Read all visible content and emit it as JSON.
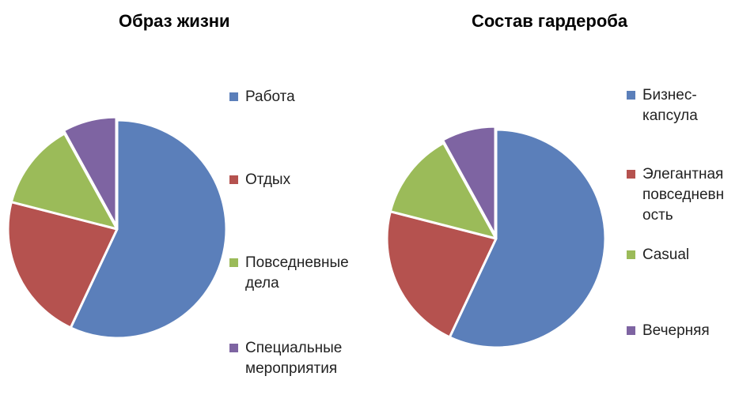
{
  "chart_data": [
    {
      "type": "pie",
      "title": "Образ жизни",
      "categories": [
        "Работа",
        "Отдых",
        "Повседневные дела",
        "Специальные мероприятия"
      ],
      "values": [
        57,
        22,
        13,
        8
      ],
      "colors": [
        "#5B7FBA",
        "#B5524F",
        "#9BBB59",
        "#7E64A2"
      ],
      "legend_lines": [
        [
          "Работа"
        ],
        [
          "Отдых"
        ],
        [
          "Повседневные",
          "дела"
        ],
        [
          "Специальные",
          "мероприятия"
        ]
      ],
      "legend": "right"
    },
    {
      "type": "pie",
      "title": "Состав гардероба",
      "categories": [
        "Бизнес-капсула",
        "Элегантная повседневность",
        "Casual",
        "Вечерняя"
      ],
      "values": [
        57,
        22,
        13,
        8
      ],
      "colors": [
        "#5B7FBA",
        "#B5524F",
        "#9BBB59",
        "#7E64A2"
      ],
      "legend_lines": [
        [
          "Бизнес-",
          "капсула"
        ],
        [
          "Элегантная",
          "повседневн",
          "ость"
        ],
        [
          "Casual"
        ],
        [
          "Вечерняя"
        ]
      ],
      "legend": "right"
    }
  ]
}
